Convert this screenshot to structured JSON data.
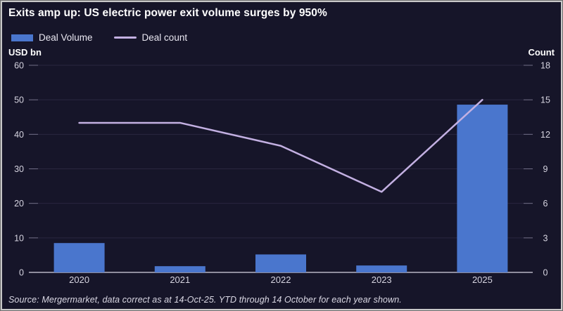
{
  "chart": {
    "title": "Exits amp up: US electric power exit volume surges by 950%",
    "legend": {
      "deal_volume_label": "Deal Volume",
      "deal_count_label": "Deal count"
    },
    "left_axis_title": "USD bn",
    "right_axis_title": "Count",
    "source_note": "Source: Mergermarket, data correct as at 14-Oct-25. YTD through 14 October for each year shown."
  },
  "chart_data": {
    "type": "bar+line",
    "categories": [
      "2020",
      "2021",
      "2022",
      "2023",
      "2025"
    ],
    "series": [
      {
        "name": "Deal Volume",
        "type": "bar",
        "axis": "left",
        "values": [
          8.5,
          1.8,
          5.2,
          2.0,
          48.6
        ]
      },
      {
        "name": "Deal count",
        "type": "line",
        "axis": "right",
        "values": [
          13,
          13,
          11,
          7,
          15
        ]
      }
    ],
    "left_axis": {
      "label": "USD bn",
      "min": 0,
      "max": 60,
      "step": 10
    },
    "right_axis": {
      "label": "Count",
      "min": 0,
      "max": 18,
      "step": 3
    },
    "grid": true,
    "legend_position": "top-left",
    "title": "Exits amp up: US electric power exit volume surges by 950%"
  },
  "colors": {
    "background": "#161529",
    "bar": "#4a76cd",
    "line": "#c3b0e2",
    "grid": "#2a2740",
    "tick_mark": "#716e86",
    "axis_line": "#b7b5c4",
    "tick_text": "#d6d4e0",
    "border": "#c9c9c9"
  }
}
